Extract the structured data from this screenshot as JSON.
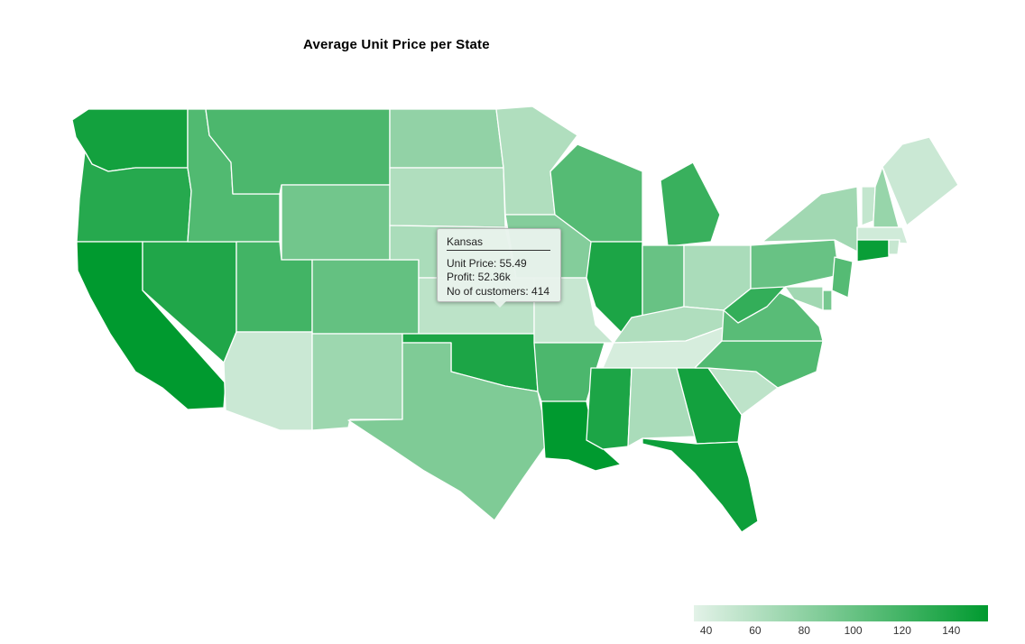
{
  "title": "Average Unit Price per State",
  "colors": {
    "low": "#e3f2e8",
    "high": "#009a2f"
  },
  "legend": {
    "min": 35,
    "max": 155,
    "ticks": [
      "40",
      "60",
      "80",
      "100",
      "120",
      "140"
    ]
  },
  "tooltip": {
    "state": "Kansas",
    "unit_price": "Unit Price: 55.49",
    "profit": "Profit: 52.36k",
    "customers": "No of customers: 414"
  },
  "states": [
    {
      "name": "Washington",
      "value": 145
    },
    {
      "name": "Oregon",
      "value": 135
    },
    {
      "name": "California",
      "value": 155
    },
    {
      "name": "Nevada",
      "value": 138
    },
    {
      "name": "Idaho",
      "value": 112
    },
    {
      "name": "Montana",
      "value": 115
    },
    {
      "name": "Wyoming",
      "value": 95
    },
    {
      "name": "Utah",
      "value": 120
    },
    {
      "name": "Colorado",
      "value": 102
    },
    {
      "name": "Arizona",
      "value": 48
    },
    {
      "name": "New Mexico",
      "value": 72
    },
    {
      "name": "North Dakota",
      "value": 78
    },
    {
      "name": "South Dakota",
      "value": 62
    },
    {
      "name": "Nebraska",
      "value": 65
    },
    {
      "name": "Kansas",
      "value": 55.49
    },
    {
      "name": "Oklahoma",
      "value": 140
    },
    {
      "name": "Texas",
      "value": 88
    },
    {
      "name": "Minnesota",
      "value": 62
    },
    {
      "name": "Iowa",
      "value": 85
    },
    {
      "name": "Missouri",
      "value": 50
    },
    {
      "name": "Arkansas",
      "value": 115
    },
    {
      "name": "Louisiana",
      "value": 155
    },
    {
      "name": "Wisconsin",
      "value": 110
    },
    {
      "name": "Illinois",
      "value": 140
    },
    {
      "name": "Michigan",
      "value": 125
    },
    {
      "name": "Indiana",
      "value": 100
    },
    {
      "name": "Ohio",
      "value": 65
    },
    {
      "name": "Kentucky",
      "value": 62
    },
    {
      "name": "Tennessee",
      "value": 42
    },
    {
      "name": "Mississippi",
      "value": 140
    },
    {
      "name": "Alabama",
      "value": 65
    },
    {
      "name": "Georgia",
      "value": 145
    },
    {
      "name": "Florida",
      "value": 148
    },
    {
      "name": "South Carolina",
      "value": 55
    },
    {
      "name": "North Carolina",
      "value": 112
    },
    {
      "name": "Virginia",
      "value": 108
    },
    {
      "name": "West Virginia",
      "value": 128
    },
    {
      "name": "Pennsylvania",
      "value": 100
    },
    {
      "name": "New York",
      "value": 70
    },
    {
      "name": "Vermont",
      "value": 52
    },
    {
      "name": "New Hampshire",
      "value": 75
    },
    {
      "name": "Maine",
      "value": 48
    },
    {
      "name": "Massachusetts",
      "value": 45
    },
    {
      "name": "Connecticut",
      "value": 150
    },
    {
      "name": "New Jersey",
      "value": 110
    },
    {
      "name": "Delaware",
      "value": 92
    },
    {
      "name": "Maryland",
      "value": 70
    },
    {
      "name": "Rhode Island",
      "value": 50
    }
  ]
}
